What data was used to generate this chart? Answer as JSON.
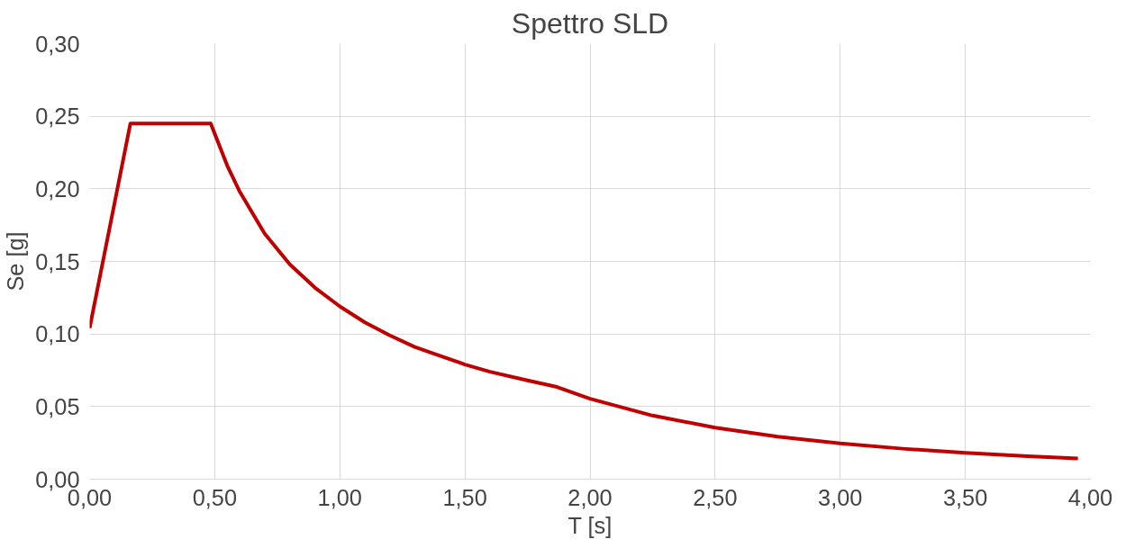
{
  "chart_data": {
    "type": "line",
    "title": "Spettro SLD",
    "xlabel": "T [s]",
    "ylabel": "Se [g]",
    "x": [
      0,
      0.163,
      0.484,
      0.55,
      0.6,
      0.7,
      0.8,
      0.9,
      1.0,
      1.1,
      1.2,
      1.3,
      1.4,
      1.5,
      1.6,
      1.75,
      1.868,
      2.0,
      2.25,
      2.5,
      2.75,
      3.0,
      3.25,
      3.5,
      3.75,
      3.95
    ],
    "series": [
      {
        "color": "#c00000",
        "values": [
          0.104,
          0.245,
          0.245,
          0.216,
          0.198,
          0.169,
          0.148,
          0.132,
          0.119,
          0.108,
          0.099,
          0.091,
          0.085,
          0.079,
          0.074,
          0.068,
          0.0635,
          0.0554,
          0.0438,
          0.0355,
          0.0293,
          0.0246,
          0.021,
          0.0181,
          0.0158,
          0.0142
        ]
      }
    ],
    "xlim": [
      0,
      4
    ],
    "ylim": [
      0,
      0.3
    ],
    "xticks": [
      {
        "value": 0,
        "label": "0,00"
      },
      {
        "value": 0.5,
        "label": "0,50"
      },
      {
        "value": 1,
        "label": "1,00"
      },
      {
        "value": 1.5,
        "label": "1,50"
      },
      {
        "value": 2,
        "label": "2,00"
      },
      {
        "value": 2.5,
        "label": "2,50"
      },
      {
        "value": 3,
        "label": "3,00"
      },
      {
        "value": 3.5,
        "label": "3,50"
      },
      {
        "value": 4,
        "label": "4,00"
      }
    ],
    "yticks": [
      {
        "value": 0,
        "label": "0,00"
      },
      {
        "value": 0.05,
        "label": "0,05"
      },
      {
        "value": 0.1,
        "label": "0,10"
      },
      {
        "value": 0.15,
        "label": "0,15"
      },
      {
        "value": 0.2,
        "label": "0,20"
      },
      {
        "value": 0.25,
        "label": "0,25"
      },
      {
        "value": 0.3,
        "label": "0,30"
      }
    ],
    "grid": true,
    "marker": "none",
    "line_style": "solid"
  }
}
